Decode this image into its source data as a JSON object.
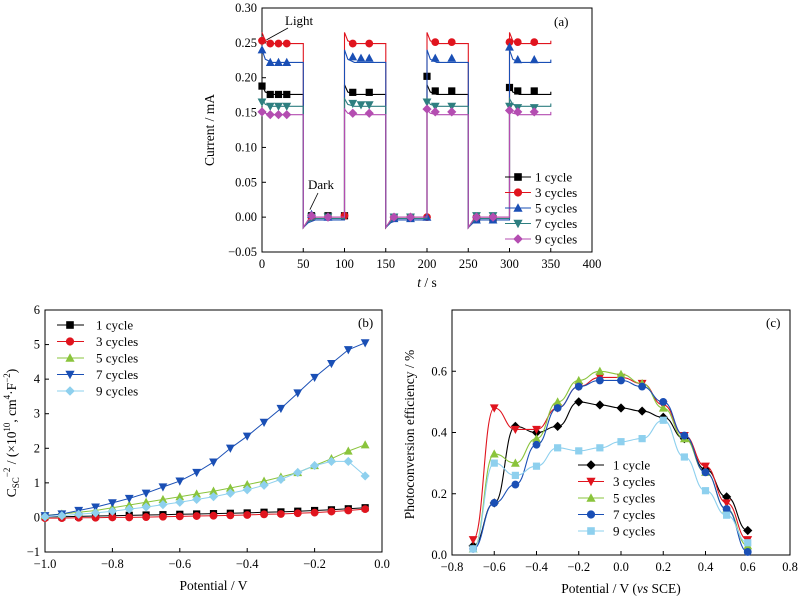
{
  "colors": {
    "1 cycle a": "#000000",
    "3 cycles a": "#e0141e",
    "5 cycles a": "#1a4fb5",
    "7 cycles a": "#2e7f80",
    "9 cycles a": "#b44db1",
    "1 cycle bc": "#000000",
    "3 cycles bc": "#e0141e",
    "5 cycles bc": "#8ac43c",
    "7 cycles bc": "#1a4fb5",
    "9 cycles bc": "#8ed0ee"
  },
  "chart_data": [
    {
      "id": "a",
      "type": "line",
      "panel_label": "(a)",
      "xlabel_italic": "t",
      "xlabel_rest": " / s",
      "ylabel": "Current / mA",
      "xlim": [
        0,
        400
      ],
      "ylim": [
        -0.05,
        0.3
      ],
      "xticks": [
        "0",
        "50",
        "100",
        "150",
        "200",
        "250",
        "300",
        "350",
        "400"
      ],
      "yticks": [
        "−0.05",
        "0.00",
        "0.05",
        "0.10",
        "0.15",
        "0.20",
        "0.25",
        "0.30"
      ],
      "annotations": [
        {
          "text": "Light",
          "arrow_to": [
            3,
            0.25
          ]
        },
        {
          "text": "Dark",
          "arrow_to": [
            58,
            0.005
          ]
        }
      ],
      "legend_position": "bottom-right",
      "light_intervals": [
        [
          0,
          50
        ],
        [
          100,
          150
        ],
        [
          200,
          250
        ],
        [
          300,
          350
        ]
      ],
      "dark_intervals": [
        [
          50,
          100
        ],
        [
          150,
          200
        ],
        [
          250,
          300
        ]
      ],
      "series": [
        {
          "name": "1 cycle",
          "marker": "square",
          "light_spike": 0.19,
          "light_level": 0.176,
          "dark_level": -0.002,
          "markers": [
            [
              0,
              0.188
            ],
            [
              10,
              0.176
            ],
            [
              20,
              0.176
            ],
            [
              30,
              0.176
            ],
            [
              60,
              0.002
            ],
            [
              80,
              0.002
            ],
            [
              100,
              0.002
            ],
            [
              110,
              0.179
            ],
            [
              130,
              0.179
            ],
            [
              160,
              0.0
            ],
            [
              180,
              0.0
            ],
            [
              200,
              0.202
            ],
            [
              210,
              0.181
            ],
            [
              230,
              0.181
            ],
            [
              260,
              -0.002
            ],
            [
              280,
              -0.002
            ],
            [
              300,
              0.186
            ],
            [
              310,
              0.181
            ],
            [
              330,
              0.181
            ]
          ]
        },
        {
          "name": "3 cycles",
          "marker": "circle",
          "light_spike": 0.265,
          "light_level": 0.249,
          "dark_level": 0.0,
          "markers": [
            [
              0,
              0.253
            ],
            [
              10,
              0.249
            ],
            [
              20,
              0.249
            ],
            [
              30,
              0.249
            ],
            [
              60,
              0.0
            ],
            [
              80,
              0.0
            ],
            [
              100,
              0.002
            ],
            [
              110,
              0.249
            ],
            [
              130,
              0.249
            ],
            [
              160,
              0.0
            ],
            [
              180,
              0.0
            ],
            [
              200,
              0.0
            ],
            [
              210,
              0.251
            ],
            [
              230,
              0.251
            ],
            [
              260,
              0.0
            ],
            [
              280,
              0.0
            ],
            [
              300,
              0.251
            ],
            [
              310,
              0.251
            ],
            [
              330,
              0.251
            ]
          ]
        },
        {
          "name": "5 cycles",
          "marker": "triangle-up",
          "light_spike": 0.24,
          "light_level": 0.222,
          "dark_level": -0.004,
          "markers": [
            [
              0,
              0.24
            ],
            [
              10,
              0.222
            ],
            [
              20,
              0.222
            ],
            [
              30,
              0.222
            ],
            [
              60,
              0.004
            ],
            [
              80,
              0.0
            ],
            [
              110,
              0.23
            ],
            [
              120,
              0.228
            ],
            [
              130,
              0.228
            ],
            [
              160,
              -0.002
            ],
            [
              180,
              -0.002
            ],
            [
              200,
              0.0
            ],
            [
              210,
              0.228
            ],
            [
              230,
              0.228
            ],
            [
              260,
              -0.004
            ],
            [
              280,
              -0.004
            ],
            [
              300,
              0.244
            ],
            [
              310,
              0.226
            ],
            [
              330,
              0.226
            ]
          ]
        },
        {
          "name": "7 cycles",
          "marker": "triangle-down",
          "light_spike": 0.17,
          "light_level": 0.159,
          "dark_level": -0.002,
          "markers": [
            [
              0,
              0.165
            ],
            [
              10,
              0.159
            ],
            [
              20,
              0.159
            ],
            [
              30,
              0.159
            ],
            [
              60,
              0.0
            ],
            [
              80,
              0.0
            ],
            [
              110,
              0.163
            ],
            [
              120,
              0.161
            ],
            [
              130,
              0.161
            ],
            [
              160,
              0.0
            ],
            [
              180,
              0.0
            ],
            [
              200,
              0.165
            ],
            [
              210,
              0.159
            ],
            [
              230,
              0.159
            ],
            [
              260,
              0.002
            ],
            [
              280,
              0.002
            ],
            [
              300,
              0.159
            ],
            [
              310,
              0.157
            ],
            [
              330,
              0.157
            ]
          ]
        },
        {
          "name": "9 cycles",
          "marker": "diamond",
          "light_spike": 0.155,
          "light_level": 0.147,
          "dark_level": 0.0,
          "markers": [
            [
              0,
              0.151
            ],
            [
              10,
              0.147
            ],
            [
              20,
              0.147
            ],
            [
              30,
              0.147
            ],
            [
              60,
              0.002
            ],
            [
              80,
              0.0
            ],
            [
              110,
              0.149
            ],
            [
              130,
              0.149
            ],
            [
              160,
              0.0
            ],
            [
              180,
              0.0
            ],
            [
              200,
              0.155
            ],
            [
              210,
              0.151
            ],
            [
              230,
              0.151
            ],
            [
              260,
              0.0
            ],
            [
              280,
              0.0
            ],
            [
              300,
              0.153
            ],
            [
              310,
              0.151
            ],
            [
              330,
              0.151
            ]
          ]
        }
      ]
    },
    {
      "id": "b",
      "type": "line",
      "panel_label": "(b)",
      "xlabel": "Potential / V",
      "ylabel_main": "C",
      "ylabel_sub": "SC",
      "ylabel_sup": "−2",
      "ylabel_mid": " / (×10",
      "ylabel_sup2": "10",
      "ylabel_unit": ", cm",
      "ylabel_sup3": "4",
      "ylabel_unit2": "·F",
      "ylabel_sup4": "−2",
      "ylabel_end": ")",
      "xlim": [
        -1.0,
        0.0
      ],
      "ylim": [
        -1,
        6
      ],
      "xticks": [
        "−1.0",
        "−0.8",
        "−0.6",
        "−0.4",
        "−0.2",
        "0.0"
      ],
      "yticks": [
        "−1",
        "0",
        "1",
        "2",
        "3",
        "4",
        "5",
        "6"
      ],
      "legend_position": "top-left",
      "series": [
        {
          "name": "1 cycle",
          "marker": "square",
          "x": [
            -1.0,
            -0.95,
            -0.9,
            -0.85,
            -0.8,
            -0.75,
            -0.7,
            -0.65,
            -0.6,
            -0.55,
            -0.5,
            -0.45,
            -0.4,
            -0.35,
            -0.3,
            -0.25,
            -0.2,
            -0.15,
            -0.1,
            -0.05
          ],
          "y": [
            0.02,
            0.02,
            0.03,
            0.04,
            0.05,
            0.06,
            0.07,
            0.08,
            0.09,
            0.1,
            0.11,
            0.12,
            0.13,
            0.15,
            0.16,
            0.18,
            0.2,
            0.22,
            0.25,
            0.28
          ]
        },
        {
          "name": "3 cycles",
          "marker": "circle",
          "x": [
            -1.0,
            -0.95,
            -0.9,
            -0.85,
            -0.8,
            -0.75,
            -0.7,
            -0.65,
            -0.6,
            -0.55,
            -0.5,
            -0.45,
            -0.4,
            -0.35,
            -0.3,
            -0.25,
            -0.2,
            -0.15,
            -0.1,
            -0.05
          ],
          "y": [
            -0.02,
            -0.02,
            -0.01,
            -0.01,
            0.0,
            0.0,
            0.01,
            0.02,
            0.03,
            0.04,
            0.05,
            0.06,
            0.07,
            0.09,
            0.1,
            0.12,
            0.14,
            0.17,
            0.2,
            0.24
          ]
        },
        {
          "name": "5 cycles",
          "marker": "triangle-up",
          "x": [
            -1.0,
            -0.95,
            -0.9,
            -0.85,
            -0.8,
            -0.75,
            -0.7,
            -0.65,
            -0.6,
            -0.55,
            -0.5,
            -0.45,
            -0.4,
            -0.35,
            -0.3,
            -0.25,
            -0.2,
            -0.15,
            -0.1,
            -0.05
          ],
          "y": [
            0.06,
            0.1,
            0.15,
            0.2,
            0.28,
            0.36,
            0.44,
            0.52,
            0.6,
            0.68,
            0.76,
            0.85,
            0.95,
            1.05,
            1.17,
            1.3,
            1.5,
            1.7,
            1.92,
            2.1
          ]
        },
        {
          "name": "7 cycles",
          "marker": "triangle-down",
          "x": [
            -1.0,
            -0.95,
            -0.9,
            -0.85,
            -0.8,
            -0.75,
            -0.7,
            -0.65,
            -0.6,
            -0.55,
            -0.5,
            -0.45,
            -0.4,
            -0.35,
            -0.3,
            -0.25,
            -0.2,
            -0.15,
            -0.1,
            -0.05
          ],
          "y": [
            0.05,
            0.1,
            0.2,
            0.3,
            0.42,
            0.55,
            0.7,
            0.88,
            1.05,
            1.3,
            1.6,
            2.0,
            2.35,
            2.75,
            3.15,
            3.6,
            4.05,
            4.45,
            4.85,
            5.05
          ]
        },
        {
          "name": "9 cycles",
          "marker": "diamond",
          "x": [
            -1.0,
            -0.95,
            -0.9,
            -0.85,
            -0.8,
            -0.75,
            -0.7,
            -0.65,
            -0.6,
            -0.55,
            -0.5,
            -0.45,
            -0.4,
            -0.35,
            -0.3,
            -0.25,
            -0.2,
            -0.15,
            -0.1,
            -0.05
          ],
          "y": [
            0.02,
            0.05,
            0.09,
            0.13,
            0.18,
            0.24,
            0.3,
            0.37,
            0.44,
            0.52,
            0.6,
            0.7,
            0.8,
            0.93,
            1.1,
            1.3,
            1.5,
            1.62,
            1.62,
            1.2
          ]
        }
      ]
    },
    {
      "id": "c",
      "type": "line",
      "panel_label": "(c)",
      "xlabel_pre": "Potential / V (",
      "xlabel_italic": "vs",
      "xlabel_post": " SCE)",
      "ylabel": "Photoconversion efficiency / %",
      "xlim": [
        -0.8,
        0.8
      ],
      "ylim": [
        0.0,
        0.8
      ],
      "xticks": [
        "−0.8",
        "−0.6",
        "−0.4",
        "−0.2",
        "0.0",
        "0.2",
        "0.4",
        "0.6",
        "0.8"
      ],
      "yticks": [
        "0.0",
        "0.2",
        "0.4",
        "0.6"
      ],
      "legend_position": "bottom-center",
      "series": [
        {
          "name": "1 cycle",
          "marker": "diamond",
          "x": [
            -0.7,
            -0.6,
            -0.5,
            -0.4,
            -0.3,
            -0.2,
            -0.1,
            0.0,
            0.1,
            0.2,
            0.3,
            0.4,
            0.5,
            0.6
          ],
          "y": [
            0.03,
            0.17,
            0.42,
            0.4,
            0.42,
            0.5,
            0.49,
            0.48,
            0.47,
            0.45,
            0.38,
            0.28,
            0.19,
            0.08
          ]
        },
        {
          "name": "3 cycles",
          "marker": "triangle-down",
          "x": [
            -0.7,
            -0.6,
            -0.5,
            -0.4,
            -0.3,
            -0.2,
            -0.1,
            0.0,
            0.1,
            0.2,
            0.3,
            0.4,
            0.5,
            0.6
          ],
          "y": [
            0.05,
            0.48,
            0.41,
            0.41,
            0.48,
            0.55,
            0.58,
            0.58,
            0.56,
            0.49,
            0.39,
            0.29,
            0.17,
            0.05
          ]
        },
        {
          "name": "5 cycles",
          "marker": "triangle-up",
          "x": [
            -0.7,
            -0.6,
            -0.5,
            -0.4,
            -0.3,
            -0.2,
            -0.1,
            0.0,
            0.1,
            0.2,
            0.3,
            0.4,
            0.5,
            0.6
          ],
          "y": [
            0.02,
            0.33,
            0.3,
            0.38,
            0.5,
            0.57,
            0.6,
            0.59,
            0.56,
            0.48,
            0.38,
            0.27,
            0.15,
            0.03
          ]
        },
        {
          "name": "7 cycles",
          "marker": "circle",
          "x": [
            -0.7,
            -0.6,
            -0.5,
            -0.4,
            -0.3,
            -0.2,
            -0.1,
            0.0,
            0.1,
            0.2,
            0.3,
            0.4,
            0.5,
            0.6
          ],
          "y": [
            0.02,
            0.17,
            0.23,
            0.36,
            0.48,
            0.55,
            0.57,
            0.57,
            0.55,
            0.5,
            0.39,
            0.27,
            0.15,
            0.01
          ]
        },
        {
          "name": "9 cycles",
          "marker": "square",
          "x": [
            -0.7,
            -0.6,
            -0.5,
            -0.4,
            -0.3,
            -0.2,
            -0.1,
            0.0,
            0.1,
            0.2,
            0.3,
            0.4,
            0.5,
            0.6
          ],
          "y": [
            0.02,
            0.3,
            0.26,
            0.29,
            0.35,
            0.34,
            0.35,
            0.37,
            0.38,
            0.44,
            0.32,
            0.21,
            0.13,
            0.04
          ]
        }
      ]
    }
  ]
}
